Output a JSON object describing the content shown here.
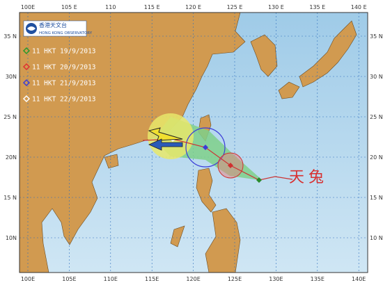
{
  "logo": {
    "chinese": "香港天文台",
    "english": "HONG KONG OBSERVATORY"
  },
  "legend": [
    "11 HKT 19/9/2013",
    "11 HKT 20/9/2013",
    "11 HKT 21/9/2013",
    "11 HKT 22/9/2013"
  ],
  "storm_name": "天兔",
  "top_labels": [
    "100E",
    "105 E",
    "110",
    "115 E",
    "120 E",
    "125 E",
    "130 E",
    "135 E",
    "140 E"
  ],
  "bottom_labels": [
    "100E",
    "105E",
    "110E",
    "115E",
    "120E",
    "125E",
    "130E",
    "135E",
    "140E"
  ],
  "left_labels": [
    "35 N",
    "30N",
    "25 N",
    "20N",
    "15 N",
    "10N"
  ],
  "right_labels": [
    "35 N",
    "30 N",
    "25 N",
    "20 N",
    "15 N",
    "10 N"
  ]
}
